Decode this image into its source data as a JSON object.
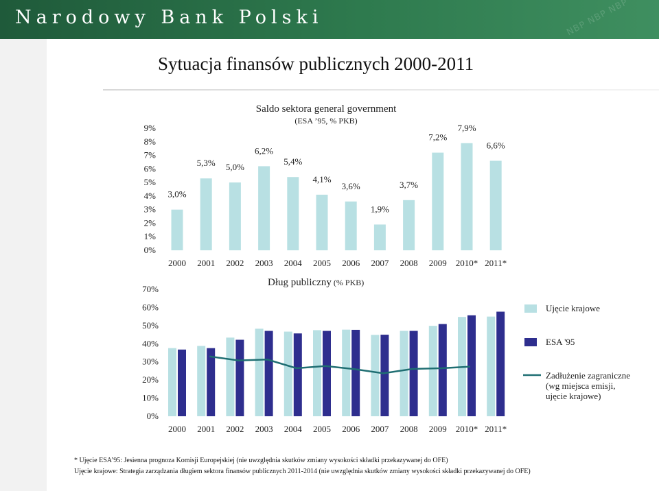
{
  "banner": {
    "bank_name": "Narodowy Bank Polski",
    "watermark": "NBP NBP NBP"
  },
  "page_title": "Sytuacja finansów publicznych 2000-2011",
  "chart_data": [
    {
      "type": "bar",
      "title": "Saldo sektora general government",
      "subtitle": "(ESA ’95, % PKB)",
      "categories": [
        "2000",
        "2001",
        "2002",
        "2003",
        "2004",
        "2005",
        "2006",
        "2007",
        "2008",
        "2009",
        "2010*",
        "2011*"
      ],
      "values": [
        3.0,
        5.3,
        5.0,
        6.2,
        5.4,
        4.1,
        3.6,
        1.9,
        3.7,
        7.2,
        7.9,
        6.6
      ],
      "data_labels": [
        "3,0%",
        "5,3%",
        "5,0%",
        "6,2%",
        "5,4%",
        "4,1%",
        "3,6%",
        "1,9%",
        "3,7%",
        "7,2%",
        "7,9%",
        "6,6%"
      ],
      "y_ticks": [
        "0%",
        "1%",
        "2%",
        "3%",
        "4%",
        "5%",
        "6%",
        "7%",
        "8%",
        "9%"
      ],
      "ylim": [
        0,
        9
      ],
      "color": "#b8e0e3"
    },
    {
      "type": "bar",
      "title": "Dług publiczny",
      "subtitle": "(% PKB)",
      "categories": [
        "2000",
        "2001",
        "2002",
        "2003",
        "2004",
        "2005",
        "2006",
        "2007",
        "2008",
        "2009",
        "2010*",
        "2011*"
      ],
      "y_ticks": [
        "0%",
        "10%",
        "20%",
        "30%",
        "40%",
        "50%",
        "60%",
        "70%"
      ],
      "ylim": [
        0,
        70
      ],
      "series": [
        {
          "name": "Ujęcie krajowe",
          "color": "#b8e0e3",
          "values": [
            37.6,
            38.8,
            43.4,
            48.3,
            46.7,
            47.5,
            47.8,
            44.9,
            47.1,
            49.9,
            54.8,
            55.0
          ]
        },
        {
          "name": "ESA '95",
          "color": "#2e2e8e",
          "values": [
            36.8,
            37.6,
            42.2,
            47.1,
            45.7,
            47.1,
            47.7,
            45.0,
            47.1,
            50.9,
            55.7,
            57.7
          ]
        },
        {
          "name": "Zadłużenie zagraniczne (wg miejsca emisji, ujęcie krajowe)",
          "color": "#1f6e72",
          "type": "line",
          "values": [
            null,
            33.0,
            30.8,
            31.3,
            26.5,
            27.7,
            26.0,
            23.7,
            26.1,
            26.5,
            27.4,
            null
          ]
        }
      ],
      "legend_position": "right"
    }
  ],
  "footnotes": [
    "* Ujęcie ESA’95: Jesienna prognoza Komisji Europejskiej (nie uwzględnia skutków zmiany wysokości składki przekazywanej do OFE)",
    "Ujęcie krajowe: Strategia zarządzania długiem sektora finansów publicznych 2011-2014 (nie uwzględnia skutków zmiany wysokości składki przekazywanej do OFE)"
  ]
}
